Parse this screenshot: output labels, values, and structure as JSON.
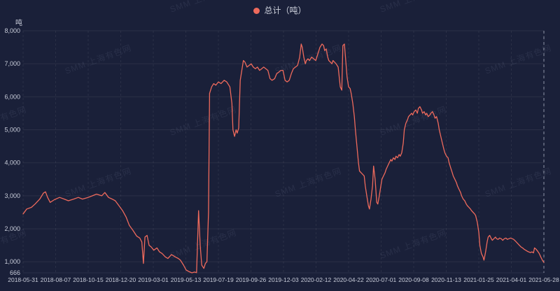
{
  "watermark": {
    "text": "SMM 上海有色网"
  },
  "colors": {
    "background": "#1a2039",
    "line": "#ee6a5c",
    "axis_text": "#c7cbd8",
    "legend_text": "#cdd1dc",
    "grid": "rgba(255,255,255,0.07)",
    "watermark": "rgba(173,183,212,0.10)",
    "crosshair": "rgba(205,210,225,0.65)"
  },
  "chart_data": {
    "type": "line",
    "title": "",
    "xlabel": "",
    "ylabel": "吨",
    "ylim": [
      666,
      8000
    ],
    "grid": true,
    "legend_position": "top-center",
    "y_ticks": [
      {
        "value": 666,
        "label": "666"
      },
      {
        "value": 1000,
        "label": "1,000"
      },
      {
        "value": 2000,
        "label": "2,000"
      },
      {
        "value": 3000,
        "label": "3,000"
      },
      {
        "value": 4000,
        "label": "4,000"
      },
      {
        "value": 5000,
        "label": "5,000"
      },
      {
        "value": 6000,
        "label": "6,000"
      },
      {
        "value": 7000,
        "label": "7,000"
      },
      {
        "value": 8000,
        "label": "8,000"
      }
    ],
    "x_ticks": [
      "2018-05-31",
      "2018-08-07",
      "2018-10-15",
      "2018-12-20",
      "2019-03-01",
      "2019-05-13",
      "2019-07-19",
      "2019-09-26",
      "2019-12-03",
      "2020-02-12",
      "2020-04-22",
      "2020-07-01",
      "2020-09-08",
      "2020-11-13",
      "2021-01-25",
      "2021-04-01",
      "2021-05-28"
    ],
    "t_scale_note": "points are [t, value] with t = 0..1000 position along the time axis",
    "series": [
      {
        "name": "总计（吨）",
        "color": "#ee6a5c",
        "points": [
          [
            0,
            2450
          ],
          [
            7,
            2600
          ],
          [
            16,
            2650
          ],
          [
            23,
            2750
          ],
          [
            32,
            2900
          ],
          [
            39,
            3080
          ],
          [
            43,
            3120
          ],
          [
            47,
            2950
          ],
          [
            52,
            2800
          ],
          [
            60,
            2880
          ],
          [
            70,
            2950
          ],
          [
            79,
            2900
          ],
          [
            87,
            2850
          ],
          [
            97,
            2900
          ],
          [
            106,
            2950
          ],
          [
            114,
            2900
          ],
          [
            125,
            2950
          ],
          [
            133,
            3000
          ],
          [
            141,
            3050
          ],
          [
            151,
            3000
          ],
          [
            157,
            3100
          ],
          [
            164,
            2950
          ],
          [
            171,
            2900
          ],
          [
            177,
            2850
          ],
          [
            184,
            2700
          ],
          [
            191,
            2550
          ],
          [
            198,
            2350
          ],
          [
            204,
            2100
          ],
          [
            211,
            1950
          ],
          [
            218,
            1780
          ],
          [
            224,
            1720
          ],
          [
            228,
            1600
          ],
          [
            231,
            950
          ],
          [
            234,
            1750
          ],
          [
            238,
            1800
          ],
          [
            242,
            1500
          ],
          [
            246,
            1450
          ],
          [
            251,
            1350
          ],
          [
            257,
            1420
          ],
          [
            262,
            1300
          ],
          [
            267,
            1250
          ],
          [
            273,
            1150
          ],
          [
            278,
            1100
          ],
          [
            285,
            1220
          ],
          [
            292,
            1150
          ],
          [
            298,
            1100
          ],
          [
            302,
            1050
          ],
          [
            308,
            900
          ],
          [
            313,
            750
          ],
          [
            319,
            700
          ],
          [
            324,
            666
          ],
          [
            329,
            690
          ],
          [
            333,
            670
          ],
          [
            337,
            2550
          ],
          [
            340,
            1500
          ],
          [
            343,
            900
          ],
          [
            347,
            800
          ],
          [
            350,
            950
          ],
          [
            353,
            1000
          ],
          [
            356,
            2500
          ],
          [
            358,
            6100
          ],
          [
            362,
            6300
          ],
          [
            366,
            6400
          ],
          [
            370,
            6350
          ],
          [
            375,
            6450
          ],
          [
            380,
            6400
          ],
          [
            386,
            6500
          ],
          [
            391,
            6450
          ],
          [
            397,
            6300
          ],
          [
            401,
            5800
          ],
          [
            403,
            5000
          ],
          [
            406,
            4800
          ],
          [
            409,
            5000
          ],
          [
            411,
            4900
          ],
          [
            414,
            5050
          ],
          [
            417,
            6500
          ],
          [
            421,
            6900
          ],
          [
            423,
            7100
          ],
          [
            426,
            7050
          ],
          [
            430,
            6900
          ],
          [
            434,
            6950
          ],
          [
            438,
            7000
          ],
          [
            442,
            6900
          ],
          [
            446,
            6850
          ],
          [
            450,
            6900
          ],
          [
            454,
            6800
          ],
          [
            458,
            6850
          ],
          [
            462,
            6900
          ],
          [
            466,
            6850
          ],
          [
            470,
            6800
          ],
          [
            474,
            6550
          ],
          [
            478,
            6500
          ],
          [
            483,
            6550
          ],
          [
            487,
            6700
          ],
          [
            491,
            6750
          ],
          [
            495,
            6800
          ],
          [
            499,
            6800
          ],
          [
            503,
            6500
          ],
          [
            507,
            6450
          ],
          [
            511,
            6500
          ],
          [
            515,
            6700
          ],
          [
            519,
            6850
          ],
          [
            523,
            6900
          ],
          [
            527,
            6950
          ],
          [
            531,
            7200
          ],
          [
            534,
            7600
          ],
          [
            536,
            7500
          ],
          [
            539,
            7200
          ],
          [
            542,
            7000
          ],
          [
            544,
            7100
          ],
          [
            547,
            7150
          ],
          [
            550,
            7100
          ],
          [
            554,
            7200
          ],
          [
            558,
            7150
          ],
          [
            562,
            7100
          ],
          [
            566,
            7300
          ],
          [
            570,
            7500
          ],
          [
            574,
            7600
          ],
          [
            577,
            7550
          ],
          [
            579,
            7400
          ],
          [
            582,
            7450
          ],
          [
            585,
            7200
          ],
          [
            587,
            7100
          ],
          [
            590,
            7050
          ],
          [
            593,
            7000
          ],
          [
            595,
            7100
          ],
          [
            598,
            7050
          ],
          [
            601,
            7000
          ],
          [
            605,
            6900
          ],
          [
            609,
            6300
          ],
          [
            612,
            6200
          ],
          [
            614,
            7550
          ],
          [
            617,
            7600
          ],
          [
            620,
            7000
          ],
          [
            622,
            6600
          ],
          [
            625,
            6300
          ],
          [
            628,
            6250
          ],
          [
            630,
            6100
          ],
          [
            633,
            5800
          ],
          [
            636,
            5400
          ],
          [
            638,
            5000
          ],
          [
            641,
            4500
          ],
          [
            644,
            4000
          ],
          [
            646,
            3750
          ],
          [
            649,
            3700
          ],
          [
            652,
            3650
          ],
          [
            655,
            3600
          ],
          [
            657,
            3300
          ],
          [
            660,
            3000
          ],
          [
            663,
            2700
          ],
          [
            665,
            2600
          ],
          [
            668,
            2900
          ],
          [
            671,
            3300
          ],
          [
            673,
            3900
          ],
          [
            676,
            3500
          ],
          [
            679,
            2800
          ],
          [
            681,
            2750
          ],
          [
            684,
            3000
          ],
          [
            687,
            3300
          ],
          [
            689,
            3500
          ],
          [
            692,
            3600
          ],
          [
            695,
            3700
          ],
          [
            697,
            3800
          ],
          [
            700,
            3900
          ],
          [
            703,
            4000
          ],
          [
            706,
            4100
          ],
          [
            708,
            4050
          ],
          [
            711,
            4150
          ],
          [
            714,
            4100
          ],
          [
            716,
            4200
          ],
          [
            719,
            4150
          ],
          [
            722,
            4250
          ],
          [
            724,
            4200
          ],
          [
            727,
            4300
          ],
          [
            730,
            4600
          ],
          [
            732,
            5000
          ],
          [
            735,
            5200
          ],
          [
            738,
            5300
          ],
          [
            740,
            5400
          ],
          [
            743,
            5450
          ],
          [
            746,
            5500
          ],
          [
            748,
            5450
          ],
          [
            751,
            5550
          ],
          [
            754,
            5600
          ],
          [
            757,
            5500
          ],
          [
            759,
            5650
          ],
          [
            762,
            5700
          ],
          [
            765,
            5600
          ],
          [
            767,
            5500
          ],
          [
            770,
            5550
          ],
          [
            773,
            5450
          ],
          [
            775,
            5500
          ],
          [
            778,
            5400
          ],
          [
            781,
            5450
          ],
          [
            783,
            5500
          ],
          [
            786,
            5550
          ],
          [
            789,
            5450
          ],
          [
            791,
            5350
          ],
          [
            794,
            5400
          ],
          [
            797,
            5200
          ],
          [
            799,
            5000
          ],
          [
            802,
            4800
          ],
          [
            805,
            4600
          ],
          [
            808,
            4400
          ],
          [
            810,
            4300
          ],
          [
            813,
            4200
          ],
          [
            816,
            4150
          ],
          [
            818,
            4000
          ],
          [
            821,
            3850
          ],
          [
            824,
            3700
          ],
          [
            826,
            3600
          ],
          [
            829,
            3500
          ],
          [
            832,
            3400
          ],
          [
            834,
            3300
          ],
          [
            837,
            3200
          ],
          [
            840,
            3100
          ],
          [
            842,
            3000
          ],
          [
            845,
            2900
          ],
          [
            848,
            2850
          ],
          [
            851,
            2750
          ],
          [
            853,
            2700
          ],
          [
            856,
            2650
          ],
          [
            859,
            2600
          ],
          [
            861,
            2550
          ],
          [
            864,
            2500
          ],
          [
            867,
            2450
          ],
          [
            869,
            2400
          ],
          [
            872,
            2200
          ],
          [
            875,
            1900
          ],
          [
            877,
            1500
          ],
          [
            880,
            1250
          ],
          [
            883,
            1150
          ],
          [
            885,
            1050
          ],
          [
            888,
            1300
          ],
          [
            891,
            1600
          ],
          [
            893,
            1750
          ],
          [
            896,
            1800
          ],
          [
            899,
            1700
          ],
          [
            901,
            1650
          ],
          [
            904,
            1700
          ],
          [
            907,
            1750
          ],
          [
            909,
            1700
          ],
          [
            912,
            1680
          ],
          [
            915,
            1720
          ],
          [
            918,
            1700
          ],
          [
            921,
            1650
          ],
          [
            924,
            1700
          ],
          [
            927,
            1720
          ],
          [
            930,
            1680
          ],
          [
            933,
            1700
          ],
          [
            936,
            1720
          ],
          [
            939,
            1700
          ],
          [
            942,
            1680
          ],
          [
            944,
            1650
          ],
          [
            947,
            1600
          ],
          [
            950,
            1550
          ],
          [
            953,
            1500
          ],
          [
            956,
            1450
          ],
          [
            959,
            1420
          ],
          [
            962,
            1380
          ],
          [
            965,
            1350
          ],
          [
            968,
            1320
          ],
          [
            971,
            1300
          ],
          [
            974,
            1280
          ],
          [
            977,
            1300
          ],
          [
            980,
            1270
          ],
          [
            982,
            1420
          ],
          [
            985,
            1380
          ],
          [
            988,
            1320
          ],
          [
            991,
            1250
          ],
          [
            994,
            1150
          ],
          [
            997,
            1050
          ],
          [
            1000,
            980
          ]
        ]
      }
    ]
  }
}
